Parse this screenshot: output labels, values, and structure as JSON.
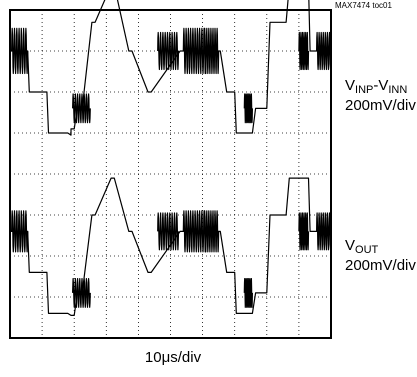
{
  "figure_id": "MAX7474 toc01",
  "chart_data": {
    "type": "line",
    "title": "",
    "grid": true,
    "grid_divisions": {
      "x": 10,
      "y": 8
    },
    "xlabel": "10μs/div",
    "channels": [
      {
        "label_main": "V",
        "label_sub_1": "INP",
        "label_sep": "-V",
        "label_sub_2": "INN",
        "scale": "200mV/div"
      },
      {
        "label_main": "V",
        "label_sub_1": "OUT",
        "label_sep": "",
        "label_sub_2": "",
        "scale": "200mV/div"
      }
    ],
    "series": [
      {
        "trace": 1,
        "x": [
          0,
          0.55,
          0.6,
          1.15,
          1.2,
          1.8,
          1.9,
          1.9,
          2.0,
          2.1,
          2.15,
          2.25,
          2.55,
          2.65,
          3.15,
          3.25,
          3.7,
          3.8,
          4.3,
          4.4,
          5.3,
          5.35,
          6.5,
          6.55,
          6.75,
          7.0,
          7.05,
          7.55,
          7.65,
          8.0,
          8.1,
          8.6,
          8.7,
          9.3,
          9.35,
          10
        ],
        "y": [
          3.0,
          3.0,
          2.0,
          2.0,
          1.0,
          1.0,
          0.95,
          1.1,
          1.1,
          1.6,
          1.6,
          1.6,
          3.7,
          3.7,
          4.6,
          4.6,
          3.0,
          3.0,
          2.0,
          2.0,
          3.0,
          3.0,
          3.0,
          3.0,
          2.0,
          2.0,
          1.0,
          1.0,
          1.6,
          1.6,
          3.7,
          3.7,
          4.6,
          4.6,
          3.0,
          3.0
        ],
        "bursts": [
          {
            "start": 0.05,
            "end": 0.55,
            "center": 3.0,
            "amplitude": 0.55
          },
          {
            "start": 1.95,
            "end": 2.5,
            "center": 1.6,
            "amplitude": 0.35
          },
          {
            "start": 4.6,
            "end": 5.25,
            "center": 3.0,
            "amplitude": 0.45
          },
          {
            "start": 5.4,
            "end": 6.1,
            "center": 3.0,
            "amplitude": 0.55
          },
          {
            "start": 6.05,
            "end": 6.5,
            "center": 3.0,
            "amplitude": 0.55
          },
          {
            "start": 7.3,
            "end": 7.55,
            "center": 1.6,
            "amplitude": 0.35
          },
          {
            "start": 9.0,
            "end": 9.3,
            "center": 3.0,
            "amplitude": 0.45
          },
          {
            "start": 9.55,
            "end": 10.0,
            "center": 3.0,
            "amplitude": 0.45
          }
        ]
      },
      {
        "trace": 2,
        "x": [
          0,
          0.55,
          0.6,
          1.15,
          1.2,
          1.8,
          1.9,
          2.0,
          2.1,
          2.15,
          2.25,
          2.55,
          2.65,
          3.15,
          3.25,
          3.7,
          3.8,
          4.3,
          4.4,
          5.3,
          5.35,
          6.5,
          6.55,
          6.75,
          7.0,
          7.05,
          7.55,
          7.65,
          8.0,
          8.1,
          8.6,
          8.7,
          9.3,
          9.35,
          10
        ],
        "y": [
          2.6,
          2.6,
          1.6,
          1.6,
          0.6,
          0.6,
          0.55,
          0.55,
          1.1,
          1.1,
          1.1,
          3.0,
          3.0,
          3.9,
          3.9,
          2.6,
          2.6,
          1.6,
          1.6,
          2.6,
          2.6,
          2.6,
          2.6,
          1.6,
          1.6,
          0.6,
          0.6,
          1.1,
          1.1,
          3.0,
          3.0,
          3.9,
          3.9,
          2.6,
          2.6
        ],
        "bursts": [
          {
            "start": 0.05,
            "end": 0.55,
            "center": 2.6,
            "amplitude": 0.5
          },
          {
            "start": 1.95,
            "end": 2.5,
            "center": 1.1,
            "amplitude": 0.35
          },
          {
            "start": 4.6,
            "end": 5.25,
            "center": 2.6,
            "amplitude": 0.45
          },
          {
            "start": 5.4,
            "end": 6.1,
            "center": 2.6,
            "amplitude": 0.5
          },
          {
            "start": 6.05,
            "end": 6.5,
            "center": 2.6,
            "amplitude": 0.5
          },
          {
            "start": 7.3,
            "end": 7.55,
            "center": 1.1,
            "amplitude": 0.35
          },
          {
            "start": 9.0,
            "end": 9.3,
            "center": 2.6,
            "amplitude": 0.45
          },
          {
            "start": 9.55,
            "end": 10.0,
            "center": 2.6,
            "amplitude": 0.45
          }
        ]
      }
    ]
  }
}
